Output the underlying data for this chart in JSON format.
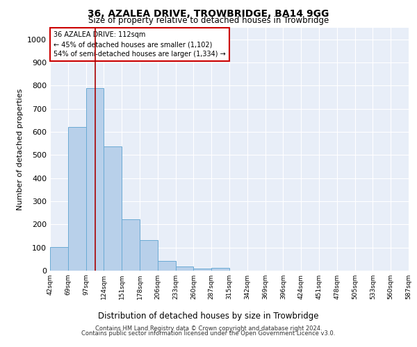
{
  "title": "36, AZALEA DRIVE, TROWBRIDGE, BA14 9GG",
  "subtitle": "Size of property relative to detached houses in Trowbridge",
  "xlabel": "Distribution of detached houses by size in Trowbridge",
  "ylabel": "Number of detached properties",
  "bar_values": [
    103,
    622,
    788,
    538,
    222,
    132,
    42,
    17,
    10,
    12,
    0,
    0,
    0,
    0,
    0,
    0,
    0,
    0,
    0,
    0
  ],
  "bin_labels": [
    "42sqm",
    "69sqm",
    "97sqm",
    "124sqm",
    "151sqm",
    "178sqm",
    "206sqm",
    "233sqm",
    "260sqm",
    "287sqm",
    "315sqm",
    "342sqm",
    "369sqm",
    "396sqm",
    "424sqm",
    "451sqm",
    "478sqm",
    "505sqm",
    "533sqm",
    "560sqm",
    "587sqm"
  ],
  "bar_color": "#b8d0ea",
  "bar_edge_color": "#6aaad4",
  "background_color": "#e8eef8",
  "grid_color": "#ffffff",
  "annotation_box_edge_color": "#cc0000",
  "annotation_line1": "36 AZALEA DRIVE: 112sqm",
  "annotation_line2": "← 45% of detached houses are smaller (1,102)",
  "annotation_line3": "54% of semi-detached houses are larger (1,334) →",
  "footer_line1": "Contains HM Land Registry data © Crown copyright and database right 2024.",
  "footer_line2": "Contains public sector information licensed under the Open Government Licence v3.0.",
  "ylim": [
    0,
    1050
  ],
  "yticks": [
    0,
    100,
    200,
    300,
    400,
    500,
    600,
    700,
    800,
    900,
    1000
  ],
  "property_line_x": 2.52,
  "figsize": [
    6.0,
    5.0
  ],
  "dpi": 100
}
